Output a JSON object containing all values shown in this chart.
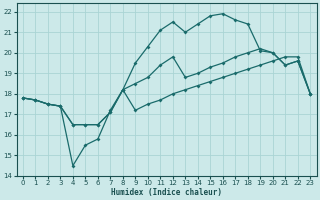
{
  "xlabel": "Humidex (Indice chaleur)",
  "xlim": [
    -0.5,
    23.5
  ],
  "ylim": [
    14,
    22.4
  ],
  "yticks": [
    14,
    15,
    16,
    17,
    18,
    19,
    20,
    21,
    22
  ],
  "xticks": [
    0,
    1,
    2,
    3,
    4,
    5,
    6,
    7,
    8,
    9,
    10,
    11,
    12,
    13,
    14,
    15,
    16,
    17,
    18,
    19,
    20,
    21,
    22,
    23
  ],
  "background_color": "#cce9e9",
  "grid_color": "#aad4d4",
  "line_color": "#1a6b6b",
  "line1_y": [
    17.8,
    17.7,
    17.5,
    17.4,
    14.5,
    15.5,
    15.8,
    17.2,
    18.2,
    19.5,
    20.3,
    21.1,
    21.5,
    21.0,
    21.4,
    21.8,
    21.9,
    21.6,
    21.4,
    20.1,
    20.0,
    19.4,
    19.6,
    18.0
  ],
  "line2_y": [
    17.8,
    17.7,
    17.5,
    17.4,
    16.5,
    16.5,
    16.5,
    17.1,
    18.2,
    18.5,
    18.8,
    19.4,
    19.8,
    18.8,
    19.0,
    19.3,
    19.5,
    19.8,
    20.0,
    20.2,
    20.0,
    19.4,
    19.6,
    18.0
  ],
  "line3_y": [
    17.8,
    17.7,
    17.5,
    17.4,
    16.5,
    16.5,
    16.5,
    17.1,
    18.2,
    17.2,
    17.5,
    17.7,
    18.0,
    18.2,
    18.4,
    18.6,
    18.8,
    19.0,
    19.2,
    19.4,
    19.6,
    19.8,
    19.8,
    18.0
  ]
}
